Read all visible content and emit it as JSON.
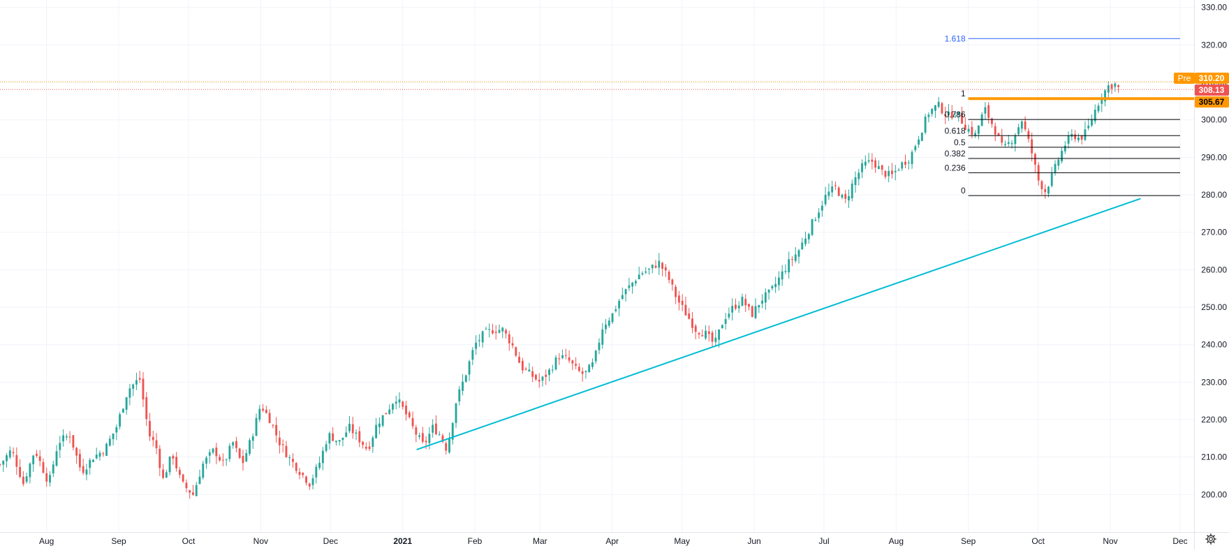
{
  "chart_data": {
    "type": "candlestick",
    "title": "",
    "xlabel": "",
    "ylabel": "",
    "ylim": [
      190,
      332
    ],
    "y_ticks": [
      "200.00",
      "210.00",
      "220.00",
      "230.00",
      "240.00",
      "250.00",
      "260.00",
      "270.00",
      "280.00",
      "290.00",
      "300.00",
      "310.00",
      "320.00",
      "330.00"
    ],
    "x_ticks": [
      {
        "label": "Aug",
        "day": -153
      },
      {
        "label": "Sep",
        "day": -122
      },
      {
        "label": "Oct",
        "day": -92
      },
      {
        "label": "Nov",
        "day": -61
      },
      {
        "label": "Dec",
        "day": -31
      },
      {
        "label": "2021",
        "day": 0
      },
      {
        "label": "Feb",
        "day": 31
      },
      {
        "label": "Mar",
        "day": 59
      },
      {
        "label": "Apr",
        "day": 90
      },
      {
        "label": "May",
        "day": 120
      },
      {
        "label": "Jun",
        "day": 151
      },
      {
        "label": "Jul",
        "day": 181
      },
      {
        "label": "Aug",
        "day": 212
      },
      {
        "label": "Sep",
        "day": 243
      },
      {
        "label": "Oct",
        "day": 273
      },
      {
        "label": "Nov",
        "day": 304
      },
      {
        "label": "Dec",
        "day": 334
      }
    ],
    "x_range": [
      -173,
      340
    ],
    "grid": true,
    "colors": {
      "up": "#26a69a",
      "down": "#ef5350",
      "trendline": "#00bcd4",
      "fib": "#000000",
      "fib_ext": "#2962ff",
      "resistance": "#ff9800",
      "pre_line": "#ff9800",
      "price_line": "#ef5350"
    },
    "price_path": [
      [
        -173,
        208
      ],
      [
        -168,
        212
      ],
      [
        -163,
        203
      ],
      [
        -158,
        212
      ],
      [
        -152,
        203
      ],
      [
        -148,
        214
      ],
      [
        -143,
        216
      ],
      [
        -138,
        206
      ],
      [
        -133,
        210
      ],
      [
        -128,
        212
      ],
      [
        -123,
        218
      ],
      [
        -118,
        228
      ],
      [
        -113,
        231
      ],
      [
        -109,
        216
      ],
      [
        -106,
        213
      ],
      [
        -103,
        204
      ],
      [
        -99,
        211
      ],
      [
        -95,
        203
      ],
      [
        -90,
        200
      ],
      [
        -86,
        208
      ],
      [
        -81,
        212
      ],
      [
        -77,
        208
      ],
      [
        -73,
        214
      ],
      [
        -69,
        208
      ],
      [
        -65,
        215
      ],
      [
        -61,
        224
      ],
      [
        -57,
        220
      ],
      [
        -53,
        214
      ],
      [
        -49,
        210
      ],
      [
        -44,
        206
      ],
      [
        -40,
        203
      ],
      [
        -36,
        208
      ],
      [
        -32,
        216
      ],
      [
        -27,
        214
      ],
      [
        -23,
        218
      ],
      [
        -19,
        215
      ],
      [
        -15,
        212
      ],
      [
        -11,
        219
      ],
      [
        -7,
        222
      ],
      [
        -3,
        226
      ],
      [
        1,
        222
      ],
      [
        5,
        217
      ],
      [
        9,
        213
      ],
      [
        13,
        218
      ],
      [
        16,
        216
      ],
      [
        19,
        212
      ],
      [
        23,
        225
      ],
      [
        27,
        232
      ],
      [
        31,
        240
      ],
      [
        35,
        243
      ],
      [
        39,
        244
      ],
      [
        43,
        244
      ],
      [
        47,
        240
      ],
      [
        51,
        234
      ],
      [
        55,
        232
      ],
      [
        59,
        230
      ],
      [
        63,
        233
      ],
      [
        67,
        237
      ],
      [
        71,
        236
      ],
      [
        75,
        233
      ],
      [
        78,
        232
      ],
      [
        82,
        235
      ],
      [
        86,
        245
      ],
      [
        90,
        248
      ],
      [
        94,
        253
      ],
      [
        98,
        256
      ],
      [
        102,
        259
      ],
      [
        106,
        260
      ],
      [
        110,
        262
      ],
      [
        114,
        258
      ],
      [
        118,
        252
      ],
      [
        122,
        248
      ],
      [
        126,
        244
      ],
      [
        130,
        243
      ],
      [
        134,
        240
      ],
      [
        138,
        247
      ],
      [
        142,
        250
      ],
      [
        146,
        252
      ],
      [
        150,
        248
      ],
      [
        154,
        252
      ],
      [
        158,
        254
      ],
      [
        162,
        258
      ],
      [
        166,
        262
      ],
      [
        170,
        265
      ],
      [
        174,
        270
      ],
      [
        178,
        275
      ],
      [
        182,
        280
      ],
      [
        186,
        282
      ],
      [
        190,
        278
      ],
      [
        194,
        284
      ],
      [
        198,
        288
      ],
      [
        202,
        289
      ],
      [
        206,
        286
      ],
      [
        210,
        285
      ],
      [
        214,
        288
      ],
      [
        218,
        290
      ],
      [
        222,
        296
      ],
      [
        226,
        302
      ],
      [
        230,
        304
      ],
      [
        234,
        301
      ],
      [
        238,
        302
      ],
      [
        242,
        298
      ],
      [
        246,
        296
      ],
      [
        250,
        303
      ],
      [
        254,
        298
      ],
      [
        258,
        292
      ],
      [
        262,
        295
      ],
      [
        266,
        300
      ],
      [
        270,
        292
      ],
      [
        273,
        284
      ],
      [
        276,
        281
      ],
      [
        279,
        285
      ],
      [
        282,
        290
      ],
      [
        285,
        294
      ],
      [
        288,
        296
      ],
      [
        291,
        295
      ],
      [
        294,
        297
      ],
      [
        297,
        302
      ],
      [
        300,
        306
      ],
      [
        303,
        309
      ],
      [
        306,
        309.5
      ],
      [
        308,
        308.1
      ]
    ],
    "trendline": {
      "from": [
        6,
        212
      ],
      "to": [
        317,
        279
      ]
    },
    "fibonacci": {
      "from_day": 243,
      "to_day": 334,
      "levels": [
        {
          "label": "1",
          "value": 305.7
        },
        {
          "label": "0.786",
          "value": 300.1
        },
        {
          "label": "0.618",
          "value": 295.8
        },
        {
          "label": "0.5",
          "value": 292.7
        },
        {
          "label": "0.382",
          "value": 289.7
        },
        {
          "label": "0.236",
          "value": 285.9
        },
        {
          "label": "0",
          "value": 279.8
        }
      ],
      "extension": {
        "label": "1.618",
        "value": 321.7
      }
    },
    "resistance": {
      "from_day": 243,
      "value": 305.67
    },
    "price_lines": {
      "pre": 310.2,
      "last": 308.13
    }
  },
  "badges": {
    "pre_label": "Pre",
    "pre_price": "310.20",
    "last_price": "308.13",
    "resistance_price": "305.67"
  },
  "icons": {
    "settings": "gear-icon"
  }
}
